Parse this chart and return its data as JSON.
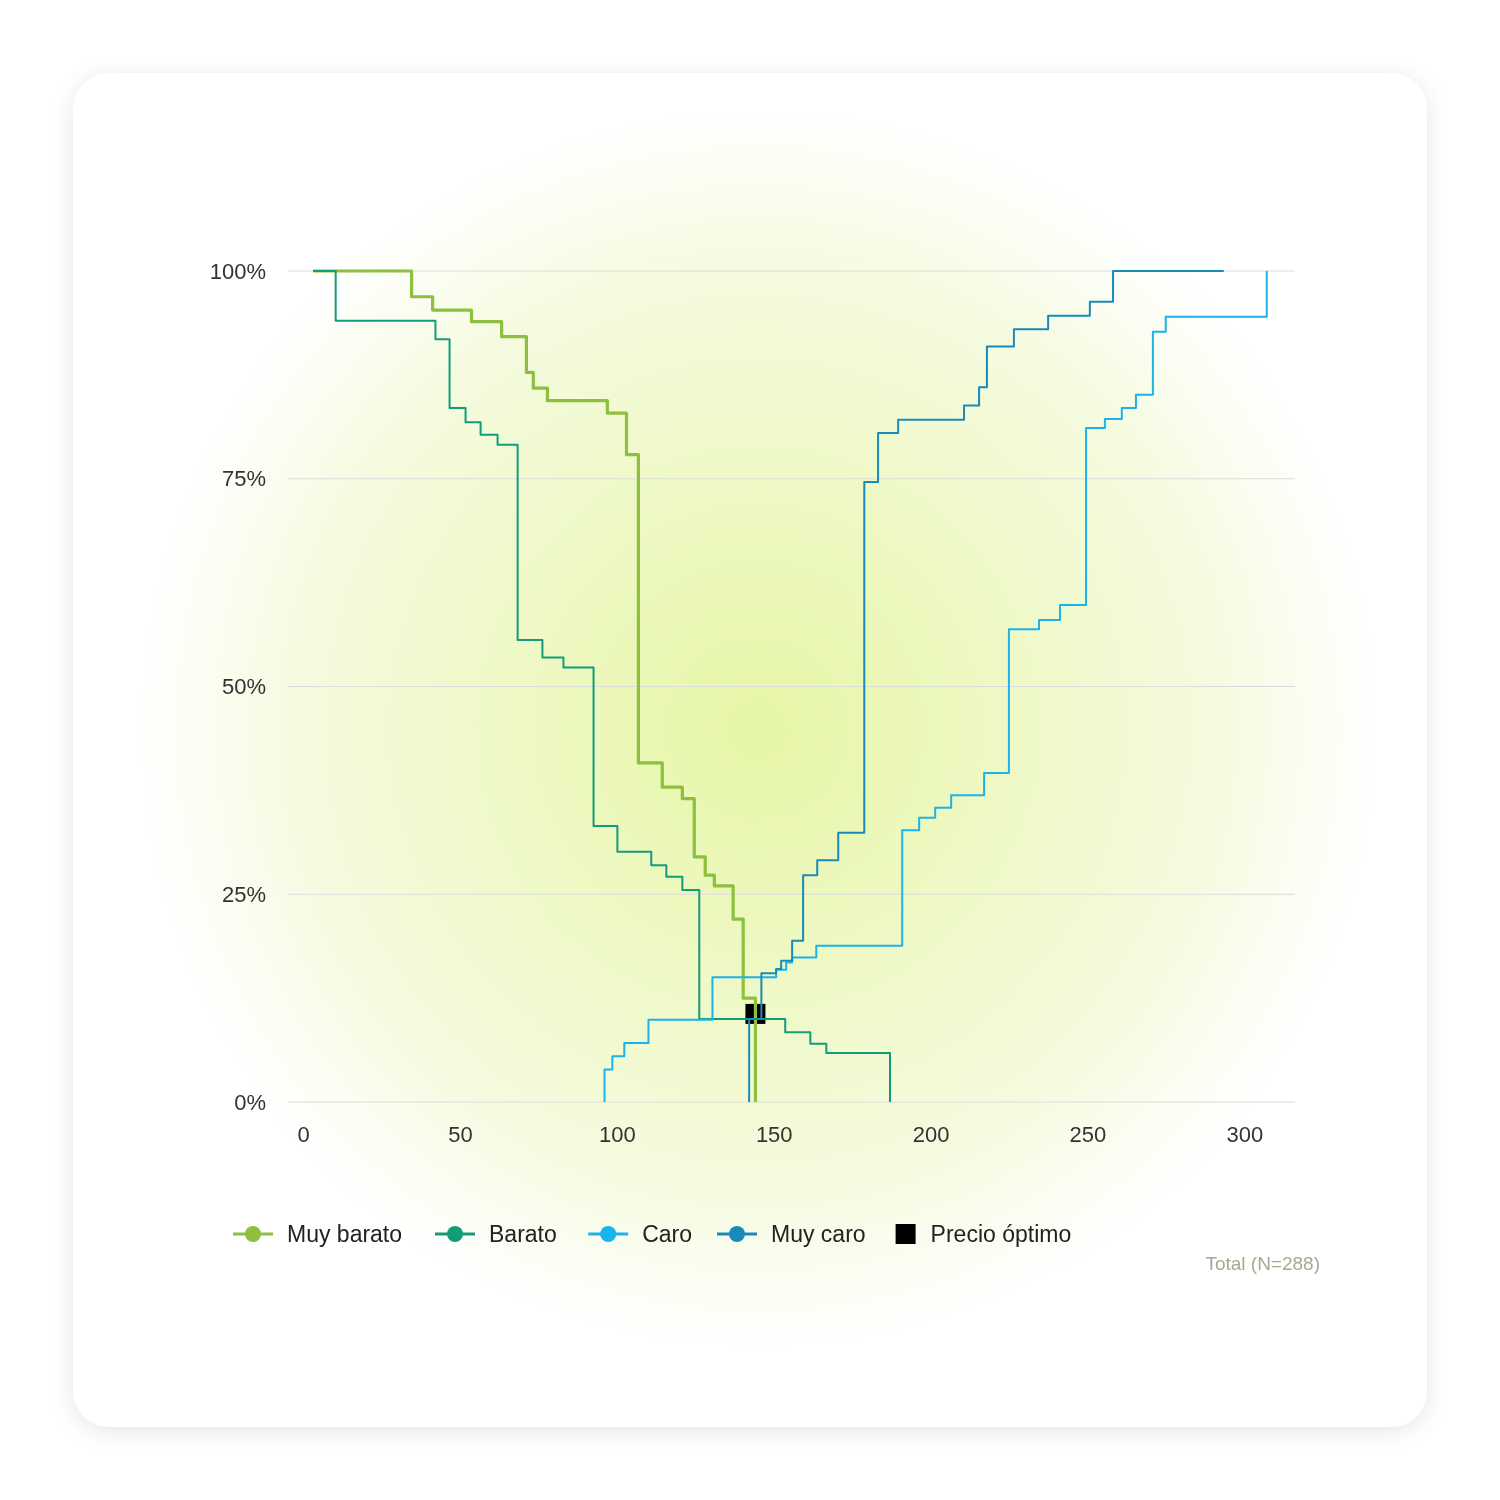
{
  "chart_data": {
    "type": "step",
    "xlim": [
      -5,
      316
    ],
    "xticks": [
      0,
      50,
      100,
      150,
      200,
      250,
      300
    ],
    "ylim": [
      0,
      100
    ],
    "yticks": [
      {
        "value": 0,
        "label": "0%"
      },
      {
        "value": 25,
        "label": "25%"
      },
      {
        "value": 50,
        "label": "50%"
      },
      {
        "value": 75,
        "label": "75%"
      },
      {
        "value": 100,
        "label": "100%"
      }
    ],
    "grid": "y",
    "legend": "bottom",
    "annotations": [
      "Total (N=288)"
    ],
    "series": [
      {
        "name": "Muy barato",
        "color": "#8dc03f",
        "x": [
          3,
          34.4,
          41.1,
          53.5,
          63.1,
          71,
          73.2,
          77.7,
          96.8,
          102.9,
          106.7,
          114.3,
          120.7,
          124.5,
          128,
          130.9,
          136.9,
          140.1,
          144,
          144
        ],
        "values": [
          100,
          96.9,
          95.3,
          93.9,
          92.1,
          87.8,
          85.9,
          84.4,
          82.9,
          77.9,
          40.8,
          37.9,
          36.5,
          29.5,
          27.3,
          26,
          22,
          12.5,
          12.5,
          0
        ]
      },
      {
        "name": "Barato",
        "color": "#139c7a",
        "x": [
          3,
          10.2,
          42,
          46.5,
          51.6,
          56.4,
          61.8,
          68.2,
          76.1,
          82.8,
          92.4,
          100,
          110.8,
          115.6,
          120.7,
          126.1,
          153.5,
          161.5,
          166.6,
          186.9
        ],
        "values": [
          100,
          94,
          91.8,
          83.5,
          81.8,
          80.3,
          79.1,
          55.6,
          53.5,
          52.3,
          33.2,
          30.1,
          28.5,
          27.1,
          25.5,
          10,
          8.4,
          7,
          5.9,
          0
        ]
      },
      {
        "name": "Caro",
        "color": "#1ab3ea",
        "x": [
          95.9,
          95.9,
          98.4,
          102.2,
          109.9,
          130.3,
          150.6,
          153.8,
          155.7,
          163.4,
          190.8,
          196.2,
          201.3,
          206.4,
          216.9,
          224.8,
          234.4,
          241.1,
          249.4,
          255.4,
          260.8,
          265.3,
          270.7,
          274.8,
          307
        ],
        "values": [
          0,
          3.9,
          5.5,
          7.1,
          9.9,
          15,
          15.9,
          16.8,
          17.4,
          18.8,
          32.7,
          34.2,
          35.4,
          36.9,
          39.6,
          56.9,
          58,
          59.8,
          81.1,
          82.2,
          83.5,
          85.1,
          92.7,
          94.5,
          100
        ]
      },
      {
        "name": "Muy caro",
        "color": "#1a8ab8",
        "x": [
          142,
          142,
          145.9,
          150.6,
          152.2,
          155.7,
          159.2,
          163.7,
          170.4,
          178.7,
          183.1,
          189.5,
          210.5,
          215.3,
          217.8,
          226.4,
          237.3,
          250.6,
          258,
          293.3
        ],
        "values": [
          0,
          10,
          15.5,
          16,
          17,
          19.4,
          27.3,
          29.1,
          32.4,
          74.6,
          80.5,
          82.1,
          83.8,
          86,
          90.9,
          93,
          94.6,
          96.3,
          100,
          100
        ]
      },
      {
        "name": "Precio óptimo",
        "type": "scatter",
        "marker": "square",
        "color": "#000000",
        "x": [
          144
        ],
        "values": [
          10.6
        ]
      }
    ]
  }
}
